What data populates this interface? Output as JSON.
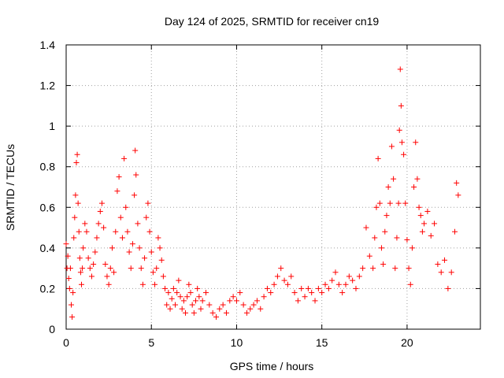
{
  "chart_data": {
    "type": "scatter",
    "title": "Day 124 of 2025, SRMTID for receiver cn19",
    "xlabel": "GPS time / hours",
    "ylabel": "SRMTID / TECUs",
    "xlim": [
      0,
      24.3
    ],
    "ylim": [
      0,
      1.4
    ],
    "xticks": [
      0,
      5,
      10,
      15,
      20
    ],
    "yticks": [
      0,
      0.2,
      0.4,
      0.6,
      0.8,
      1,
      1.2,
      1.4
    ],
    "xtick_labels": [
      "0",
      "5",
      "10",
      "15",
      "20"
    ],
    "ytick_labels": [
      "0",
      "0.2",
      "0.4",
      "0.6",
      "0.8",
      "1",
      "1.2",
      "1.4"
    ],
    "grid": true,
    "marker": "+",
    "color": "#ff0000",
    "series": [
      {
        "name": "SRMTID",
        "points": [
          [
            0.0,
            0.42
          ],
          [
            0.05,
            0.3
          ],
          [
            0.1,
            0.36
          ],
          [
            0.15,
            0.25
          ],
          [
            0.2,
            0.2
          ],
          [
            0.25,
            0.3
          ],
          [
            0.3,
            0.12
          ],
          [
            0.35,
            0.06
          ],
          [
            0.4,
            0.18
          ],
          [
            0.45,
            0.45
          ],
          [
            0.5,
            0.55
          ],
          [
            0.55,
            0.66
          ],
          [
            0.6,
            0.82
          ],
          [
            0.65,
            0.86
          ],
          [
            0.7,
            0.62
          ],
          [
            0.75,
            0.48
          ],
          [
            0.8,
            0.35
          ],
          [
            0.85,
            0.28
          ],
          [
            0.9,
            0.22
          ],
          [
            0.95,
            0.3
          ],
          [
            1.0,
            0.4
          ],
          [
            1.1,
            0.52
          ],
          [
            1.2,
            0.48
          ],
          [
            1.3,
            0.35
          ],
          [
            1.4,
            0.3
          ],
          [
            1.5,
            0.26
          ],
          [
            1.6,
            0.32
          ],
          [
            1.7,
            0.38
          ],
          [
            1.8,
            0.45
          ],
          [
            1.9,
            0.52
          ],
          [
            2.0,
            0.58
          ],
          [
            2.1,
            0.62
          ],
          [
            2.2,
            0.5
          ],
          [
            2.3,
            0.32
          ],
          [
            2.4,
            0.26
          ],
          [
            2.5,
            0.22
          ],
          [
            2.6,
            0.3
          ],
          [
            2.7,
            0.4
          ],
          [
            2.8,
            0.28
          ],
          [
            2.9,
            0.48
          ],
          [
            3.0,
            0.68
          ],
          [
            3.1,
            0.75
          ],
          [
            3.2,
            0.55
          ],
          [
            3.3,
            0.45
          ],
          [
            3.4,
            0.84
          ],
          [
            3.5,
            0.6
          ],
          [
            3.6,
            0.48
          ],
          [
            3.7,
            0.38
          ],
          [
            3.8,
            0.3
          ],
          [
            3.9,
            0.42
          ],
          [
            4.0,
            0.66
          ],
          [
            4.05,
            0.88
          ],
          [
            4.1,
            0.76
          ],
          [
            4.2,
            0.52
          ],
          [
            4.3,
            0.4
          ],
          [
            4.4,
            0.3
          ],
          [
            4.5,
            0.22
          ],
          [
            4.6,
            0.35
          ],
          [
            4.7,
            0.55
          ],
          [
            4.8,
            0.62
          ],
          [
            4.9,
            0.48
          ],
          [
            5.0,
            0.38
          ],
          [
            5.1,
            0.28
          ],
          [
            5.2,
            0.22
          ],
          [
            5.3,
            0.3
          ],
          [
            5.4,
            0.45
          ],
          [
            5.5,
            0.4
          ],
          [
            5.6,
            0.34
          ],
          [
            5.7,
            0.26
          ],
          [
            5.8,
            0.2
          ],
          [
            5.9,
            0.12
          ],
          [
            6.0,
            0.18
          ],
          [
            6.1,
            0.1
          ],
          [
            6.2,
            0.15
          ],
          [
            6.3,
            0.2
          ],
          [
            6.4,
            0.12
          ],
          [
            6.5,
            0.18
          ],
          [
            6.6,
            0.24
          ],
          [
            6.7,
            0.16
          ],
          [
            6.8,
            0.1
          ],
          [
            6.9,
            0.14
          ],
          [
            7.0,
            0.08
          ],
          [
            7.1,
            0.16
          ],
          [
            7.2,
            0.22
          ],
          [
            7.3,
            0.18
          ],
          [
            7.4,
            0.12
          ],
          [
            7.5,
            0.08
          ],
          [
            7.6,
            0.14
          ],
          [
            7.7,
            0.2
          ],
          [
            7.8,
            0.16
          ],
          [
            7.9,
            0.1
          ],
          [
            8.0,
            0.14
          ],
          [
            8.2,
            0.18
          ],
          [
            8.4,
            0.12
          ],
          [
            8.6,
            0.08
          ],
          [
            8.8,
            0.06
          ],
          [
            9.0,
            0.1
          ],
          [
            9.2,
            0.12
          ],
          [
            9.4,
            0.08
          ],
          [
            9.6,
            0.14
          ],
          [
            9.8,
            0.16
          ],
          [
            10.0,
            0.14
          ],
          [
            10.2,
            0.18
          ],
          [
            10.4,
            0.12
          ],
          [
            10.6,
            0.08
          ],
          [
            10.8,
            0.1
          ],
          [
            11.0,
            0.12
          ],
          [
            11.2,
            0.14
          ],
          [
            11.4,
            0.1
          ],
          [
            11.6,
            0.16
          ],
          [
            11.8,
            0.2
          ],
          [
            12.0,
            0.18
          ],
          [
            12.2,
            0.22
          ],
          [
            12.4,
            0.26
          ],
          [
            12.6,
            0.3
          ],
          [
            12.8,
            0.24
          ],
          [
            13.0,
            0.22
          ],
          [
            13.2,
            0.26
          ],
          [
            13.4,
            0.18
          ],
          [
            13.6,
            0.14
          ],
          [
            13.8,
            0.2
          ],
          [
            14.0,
            0.16
          ],
          [
            14.2,
            0.2
          ],
          [
            14.4,
            0.18
          ],
          [
            14.6,
            0.14
          ],
          [
            14.8,
            0.2
          ],
          [
            15.0,
            0.18
          ],
          [
            15.2,
            0.22
          ],
          [
            15.4,
            0.2
          ],
          [
            15.6,
            0.24
          ],
          [
            15.8,
            0.28
          ],
          [
            16.0,
            0.22
          ],
          [
            16.2,
            0.18
          ],
          [
            16.4,
            0.22
          ],
          [
            16.6,
            0.26
          ],
          [
            16.8,
            0.24
          ],
          [
            17.0,
            0.2
          ],
          [
            17.2,
            0.26
          ],
          [
            17.4,
            0.3
          ],
          [
            17.6,
            0.5
          ],
          [
            17.8,
            0.36
          ],
          [
            18.0,
            0.3
          ],
          [
            18.1,
            0.45
          ],
          [
            18.2,
            0.6
          ],
          [
            18.3,
            0.84
          ],
          [
            18.4,
            0.62
          ],
          [
            18.5,
            0.4
          ],
          [
            18.6,
            0.32
          ],
          [
            18.7,
            0.48
          ],
          [
            18.8,
            0.56
          ],
          [
            18.9,
            0.7
          ],
          [
            19.0,
            0.62
          ],
          [
            19.1,
            0.9
          ],
          [
            19.2,
            0.74
          ],
          [
            19.3,
            0.3
          ],
          [
            19.4,
            0.45
          ],
          [
            19.5,
            0.62
          ],
          [
            19.55,
            0.98
          ],
          [
            19.6,
            1.28
          ],
          [
            19.65,
            1.1
          ],
          [
            19.7,
            0.92
          ],
          [
            19.8,
            0.86
          ],
          [
            19.9,
            0.62
          ],
          [
            20.0,
            0.44
          ],
          [
            20.1,
            0.3
          ],
          [
            20.2,
            0.22
          ],
          [
            20.3,
            0.4
          ],
          [
            20.4,
            0.7
          ],
          [
            20.5,
            0.92
          ],
          [
            20.6,
            0.74
          ],
          [
            20.7,
            0.6
          ],
          [
            20.8,
            0.56
          ],
          [
            20.9,
            0.48
          ],
          [
            21.0,
            0.52
          ],
          [
            21.2,
            0.58
          ],
          [
            21.4,
            0.46
          ],
          [
            21.6,
            0.52
          ],
          [
            21.8,
            0.32
          ],
          [
            22.0,
            0.28
          ],
          [
            22.2,
            0.34
          ],
          [
            22.4,
            0.2
          ],
          [
            22.6,
            0.28
          ],
          [
            22.8,
            0.48
          ],
          [
            22.9,
            0.72
          ],
          [
            23.0,
            0.66
          ]
        ]
      }
    ]
  }
}
